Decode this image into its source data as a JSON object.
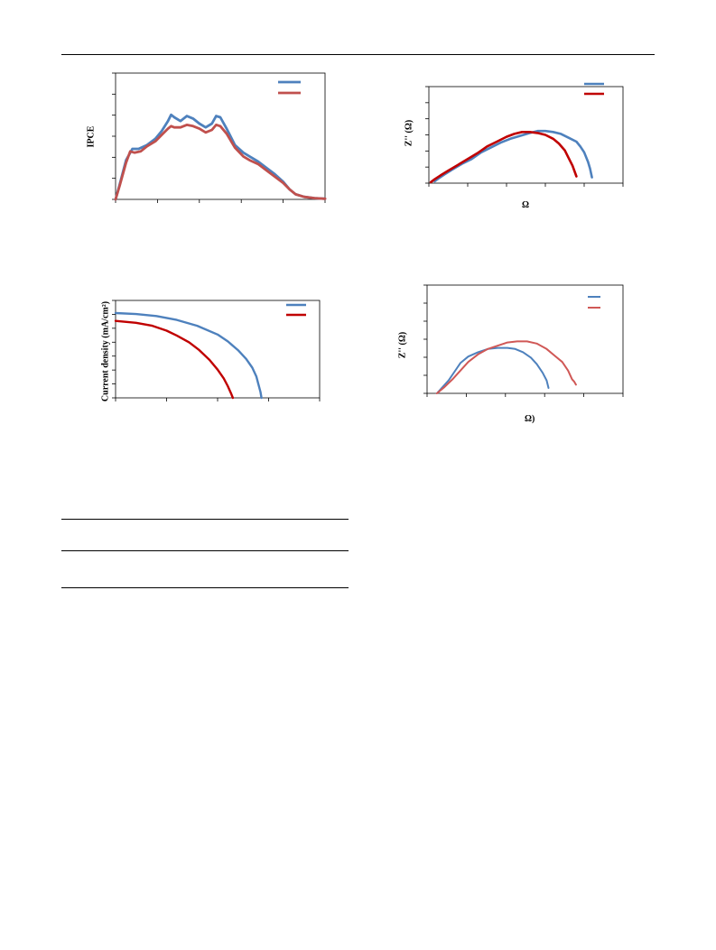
{
  "chart_data": [
    {
      "type": "line",
      "title": "",
      "xlabel": "",
      "ylabel": "IPCE",
      "xlim": [
        0,
        100
      ],
      "ylim": [
        0,
        100
      ],
      "legend": "top-right",
      "grid": false,
      "series": [
        {
          "color": "#4e81bd",
          "points": [
            [
              0,
              0
            ],
            [
              2,
              12
            ],
            [
              5,
              31
            ],
            [
              8,
              40
            ],
            [
              11,
              40
            ],
            [
              15,
              43
            ],
            [
              19,
              48
            ],
            [
              22,
              54
            ],
            [
              25,
              62
            ],
            [
              26.5,
              67
            ],
            [
              28,
              65
            ],
            [
              31,
              62
            ],
            [
              34,
              66
            ],
            [
              37,
              64
            ],
            [
              40,
              60
            ],
            [
              43,
              57
            ],
            [
              46,
              60
            ],
            [
              48,
              66
            ],
            [
              50,
              65
            ],
            [
              53,
              56
            ],
            [
              57,
              43
            ],
            [
              61,
              37
            ],
            [
              64,
              34
            ],
            [
              68,
              30
            ],
            [
              72,
              25
            ],
            [
              76,
              20
            ],
            [
              80,
              14
            ],
            [
              83,
              8
            ],
            [
              86,
              4
            ],
            [
              90,
              2
            ],
            [
              95,
              1
            ],
            [
              100,
              0.5
            ]
          ]
        },
        {
          "color": "#c0504d",
          "points": [
            [
              0,
              0
            ],
            [
              2,
              11
            ],
            [
              5,
              29
            ],
            [
              7,
              38
            ],
            [
              9,
              37
            ],
            [
              12,
              38
            ],
            [
              15,
              42
            ],
            [
              19,
              46
            ],
            [
              22,
              51
            ],
            [
              25,
              56
            ],
            [
              26.5,
              58
            ],
            [
              28,
              57
            ],
            [
              31,
              57
            ],
            [
              34,
              59
            ],
            [
              37,
              58
            ],
            [
              40,
              56
            ],
            [
              43,
              53
            ],
            [
              46,
              55
            ],
            [
              48,
              59
            ],
            [
              50,
              58
            ],
            [
              53,
              52
            ],
            [
              57,
              41
            ],
            [
              61,
              34
            ],
            [
              64,
              31
            ],
            [
              68,
              28
            ],
            [
              72,
              23
            ],
            [
              76,
              18
            ],
            [
              80,
              13
            ],
            [
              83,
              8
            ],
            [
              86,
              4
            ],
            [
              90,
              2
            ],
            [
              95,
              1
            ],
            [
              100,
              0.5
            ]
          ]
        }
      ]
    },
    {
      "type": "line",
      "title": "",
      "xlabel": "Ω",
      "ylabel": "Z'' (Ω)",
      "xlim": [
        0,
        100
      ],
      "ylim": [
        0,
        100
      ],
      "legend": "top-right",
      "grid": false,
      "series": [
        {
          "color": "#4e81bd",
          "points": [
            [
              3,
              2
            ],
            [
              5,
              5
            ],
            [
              8,
              9
            ],
            [
              12,
              14
            ],
            [
              17,
              20
            ],
            [
              22,
              25
            ],
            [
              27,
              32
            ],
            [
              32,
              37
            ],
            [
              37,
              42
            ],
            [
              42,
              46
            ],
            [
              47,
              49
            ],
            [
              52,
              52
            ],
            [
              56,
              54
            ],
            [
              60,
              54
            ],
            [
              64,
              53
            ],
            [
              68,
              51
            ],
            [
              72,
              47
            ],
            [
              76,
              43
            ],
            [
              78,
              38
            ],
            [
              80,
              32
            ],
            [
              82,
              22
            ],
            [
              83,
              15
            ],
            [
              84,
              6
            ]
          ]
        },
        {
          "color": "#c00000",
          "points": [
            [
              1,
              1
            ],
            [
              3,
              4
            ],
            [
              6,
              8
            ],
            [
              10,
              13
            ],
            [
              15,
              19
            ],
            [
              20,
              25
            ],
            [
              25,
              31
            ],
            [
              30,
              38
            ],
            [
              35,
              43
            ],
            [
              40,
              48
            ],
            [
              44,
              51
            ],
            [
              48,
              53
            ],
            [
              52,
              53
            ],
            [
              56,
              52
            ],
            [
              60,
              50
            ],
            [
              64,
              46
            ],
            [
              67,
              41
            ],
            [
              70,
              34
            ],
            [
              72,
              26
            ],
            [
              74,
              18
            ],
            [
              76,
              7
            ]
          ]
        }
      ]
    },
    {
      "type": "line",
      "title": "",
      "xlabel": "",
      "ylabel": "Current density (mA/cm²)",
      "xlim": [
        0,
        100
      ],
      "ylim": [
        0,
        100
      ],
      "legend": "top-right",
      "grid": false,
      "series": [
        {
          "color": "#4e81bd",
          "points": [
            [
              0,
              87
            ],
            [
              10,
              86
            ],
            [
              20,
              84
            ],
            [
              30,
              80
            ],
            [
              40,
              74
            ],
            [
              50,
              65
            ],
            [
              55,
              58
            ],
            [
              60,
              49
            ],
            [
              64,
              40
            ],
            [
              67,
              31
            ],
            [
              69,
              22
            ],
            [
              70,
              14
            ],
            [
              71,
              6
            ],
            [
              71.5,
              0
            ]
          ]
        },
        {
          "color": "#c00000",
          "points": [
            [
              0,
              79
            ],
            [
              10,
              77
            ],
            [
              18,
              74
            ],
            [
              25,
              69
            ],
            [
              30,
              64
            ],
            [
              36,
              57
            ],
            [
              41,
              49
            ],
            [
              46,
              39
            ],
            [
              50,
              29
            ],
            [
              53,
              20
            ],
            [
              55,
              12
            ],
            [
              56.5,
              5
            ],
            [
              57.5,
              0
            ]
          ]
        }
      ]
    },
    {
      "type": "line",
      "title": "",
      "xlabel": "Ω)",
      "ylabel": "Z'' (Ω)",
      "xlim": [
        0,
        100
      ],
      "ylim": [
        0,
        100
      ],
      "legend": "top-right",
      "grid": false,
      "series": [
        {
          "color": "#4e81bd",
          "points": [
            [
              5,
              0
            ],
            [
              8,
              6
            ],
            [
              11,
              12
            ],
            [
              14,
              20
            ],
            [
              17,
              28
            ],
            [
              21,
              34
            ],
            [
              26,
              38
            ],
            [
              31,
              41
            ],
            [
              36,
              42
            ],
            [
              41,
              42
            ],
            [
              45,
              41
            ],
            [
              49,
              38
            ],
            [
              53,
              33
            ],
            [
              56,
              27
            ],
            [
              59,
              19
            ],
            [
              61,
              12
            ],
            [
              62,
              5
            ]
          ]
        },
        {
          "color": "#d05856",
          "points": [
            [
              5,
              0
            ],
            [
              9,
              6
            ],
            [
              13,
              13
            ],
            [
              17,
              21
            ],
            [
              21,
              29
            ],
            [
              26,
              36
            ],
            [
              31,
              41
            ],
            [
              36,
              44
            ],
            [
              41,
              47
            ],
            [
              46,
              48
            ],
            [
              51,
              48
            ],
            [
              56,
              46
            ],
            [
              61,
              41
            ],
            [
              65,
              35
            ],
            [
              69,
              29
            ],
            [
              72,
              21
            ],
            [
              74,
              13
            ],
            [
              75,
              11
            ],
            [
              76,
              8
            ]
          ]
        }
      ]
    }
  ]
}
